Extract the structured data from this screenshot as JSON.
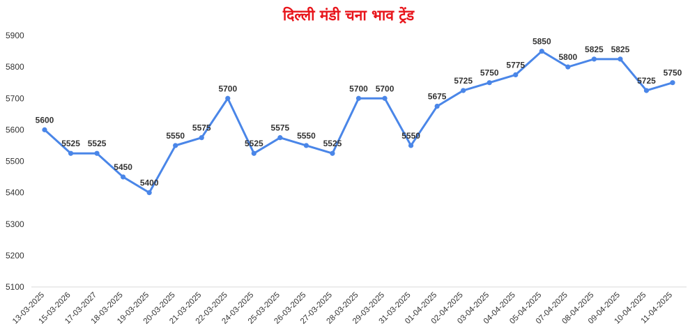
{
  "chart_data": {
    "type": "line",
    "title": "दिल्ली मंडी चना भाव ट्रेंड",
    "xlabel": "",
    "ylabel": "",
    "ylim": [
      5100,
      5900
    ],
    "yticks": [
      5100,
      5200,
      5300,
      5400,
      5500,
      5600,
      5700,
      5800,
      5900
    ],
    "grid": false,
    "legend": "none",
    "line_color": "#4a86e8",
    "title_color": "#e8151b",
    "categories": [
      "13-03-2025",
      "15-03-2026",
      "17-03-2027",
      "18-03-2025",
      "19-03-2025",
      "20-03-2025",
      "21-03-2025",
      "22-03-2025",
      "24-03-2025",
      "25-03-2025",
      "26-03-2025",
      "27-03-2025",
      "28-03-2025",
      "29-03-2025",
      "31-03-2025",
      "01-04-2025",
      "02-04-2025",
      "03-04-2025",
      "04-04-2025",
      "05-04-2025",
      "07-04-2025",
      "08-04-2025",
      "09-04-2025",
      "10-04-2025",
      "11-04-2025"
    ],
    "series": [
      {
        "values": [
          5600,
          5525,
          5525,
          5450,
          5400,
          5550,
          5575,
          5700,
          5525,
          5575,
          5550,
          5525,
          5700,
          5700,
          5550,
          5675,
          5725,
          5750,
          5775,
          5850,
          5800,
          5825,
          5825,
          5725,
          5750
        ]
      }
    ]
  }
}
